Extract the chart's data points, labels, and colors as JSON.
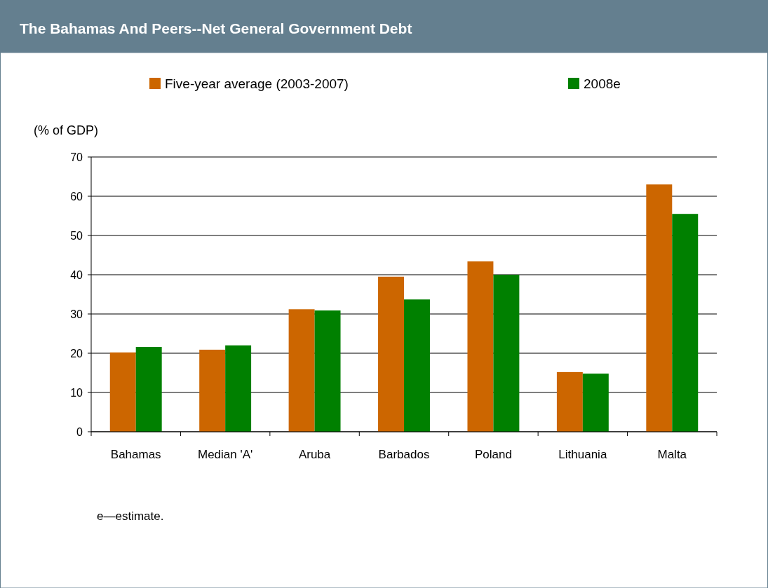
{
  "chart_data": {
    "type": "bar",
    "title": "The Bahamas And Peers--Net General Government Debt",
    "ylabel": "(% of GDP)",
    "categories": [
      "Bahamas",
      "Median 'A'",
      "Aruba",
      "Barbados",
      "Poland",
      "Lithuania",
      "Malta"
    ],
    "series": [
      {
        "name": "Five-year average (2003-2007)",
        "color": "#cc6600",
        "values": [
          20.2,
          20.9,
          31.2,
          39.5,
          43.4,
          15.2,
          63.0
        ]
      },
      {
        "name": "2008e",
        "color": "#008000",
        "values": [
          21.6,
          22.0,
          30.9,
          33.7,
          40.0,
          14.8,
          55.5
        ]
      }
    ],
    "ylim": [
      0,
      70
    ],
    "yticks": [
      0,
      10,
      20,
      30,
      40,
      50,
      60,
      70
    ],
    "grid": "y",
    "legend": "top",
    "annotations": [
      "e—estimate."
    ]
  }
}
